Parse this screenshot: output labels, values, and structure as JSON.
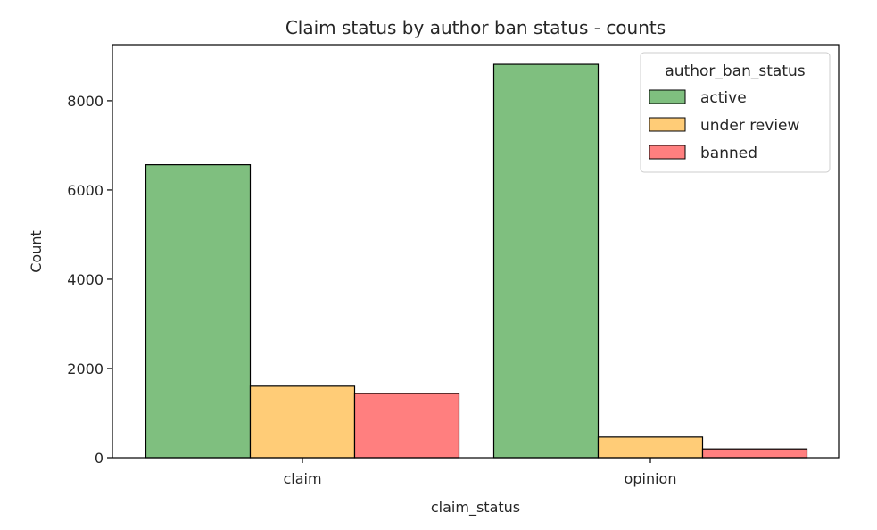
{
  "chart_data": {
    "type": "bar",
    "title": "Claim status by author ban status - counts",
    "xlabel": "claim_status",
    "ylabel": "Count",
    "categories": [
      "claim",
      "opinion"
    ],
    "series": [
      {
        "name": "active",
        "values": [
          6566,
          8817
        ],
        "color": "#7fbf7f"
      },
      {
        "name": "under review",
        "values": [
          1603,
          463
        ],
        "color": "#ffcc77"
      },
      {
        "name": "banned",
        "values": [
          1439,
          196
        ],
        "color": "#ff7f7f"
      }
    ],
    "ylim": [
      0,
      9258
    ],
    "yticks": [
      0,
      2000,
      4000,
      6000,
      8000
    ],
    "legend": {
      "title": "author_ban_status",
      "placement": "top-right"
    },
    "grid": false
  }
}
